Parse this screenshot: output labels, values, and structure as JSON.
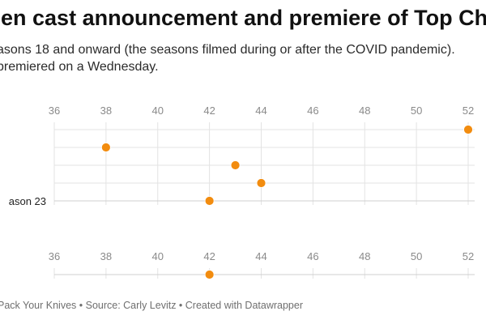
{
  "header": {
    "title": "een cast announcement and premiere of Top Chef",
    "note_line_1": "asons 18 and onward (the seasons filmed during or after the COVID pandemic).",
    "note_line_2": "premiered on a Wednesday."
  },
  "footer": {
    "text": "Pack Your Knives • Source: Carly Levitz • Created with Datawrapper"
  },
  "colors": {
    "dot": "#f28c0f",
    "grid": "#e3e3e3",
    "axis_line": "#cfcfcf"
  },
  "chart_data": [
    {
      "type": "scatter",
      "title": "",
      "xlabel": "",
      "ylabel": "",
      "xlim": [
        36,
        52
      ],
      "x_ticks": [
        "36",
        "38",
        "40",
        "42",
        "44",
        "46",
        "48",
        "50",
        "52"
      ],
      "rows": [
        "",
        "",
        "",
        "",
        "ason 23"
      ],
      "points": [
        {
          "x": 52,
          "row": 0
        },
        {
          "x": 38,
          "row": 1
        },
        {
          "x": 43,
          "row": 2
        },
        {
          "x": 44,
          "row": 3
        },
        {
          "x": 42,
          "row": 4
        }
      ],
      "grid": true
    },
    {
      "type": "scatter",
      "title": "",
      "xlabel": "",
      "ylabel": "",
      "xlim": [
        36,
        52
      ],
      "x_ticks": [
        "36",
        "38",
        "40",
        "42",
        "44",
        "46",
        "48",
        "50",
        "52"
      ],
      "rows": [
        ""
      ],
      "points": [
        {
          "x": 42,
          "row": 0
        }
      ],
      "grid": true
    }
  ]
}
